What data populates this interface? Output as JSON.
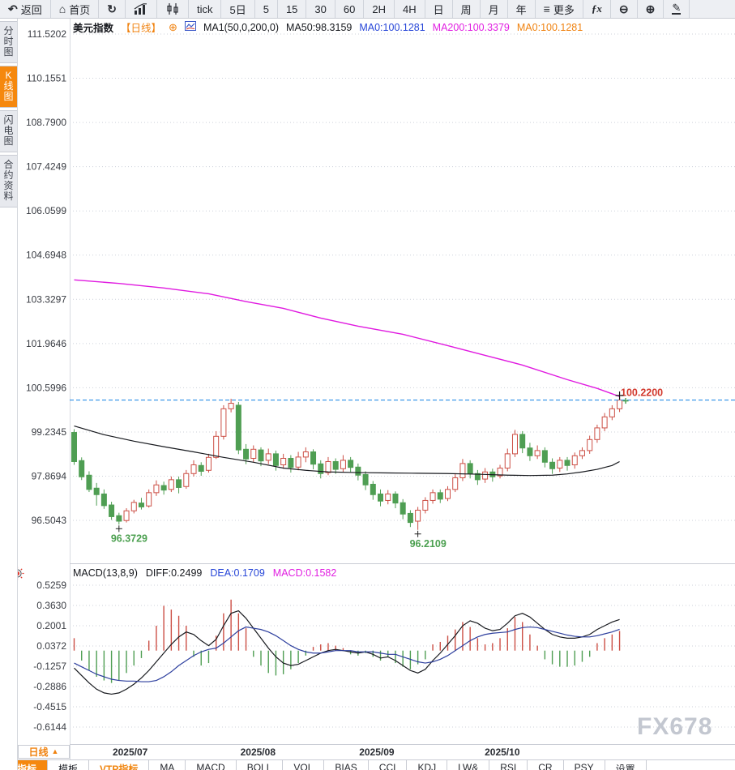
{
  "toolbar": {
    "items": [
      {
        "name": "back",
        "icon": "back",
        "label": "返回"
      },
      {
        "name": "home",
        "icon": "home",
        "label": "首页"
      },
      {
        "name": "refresh",
        "icon": "refresh",
        "label": ""
      },
      {
        "name": "chart-style-bar",
        "icon": "barchart",
        "label": ""
      },
      {
        "name": "chart-style-candle",
        "icon": "candles",
        "label": ""
      },
      {
        "name": "period-tick",
        "icon": "",
        "label": "tick"
      },
      {
        "name": "period-5day",
        "icon": "",
        "label": "5日"
      },
      {
        "name": "period-5min",
        "icon": "",
        "label": "5"
      },
      {
        "name": "period-15min",
        "icon": "",
        "label": "15"
      },
      {
        "name": "period-30min",
        "icon": "",
        "label": "30"
      },
      {
        "name": "period-60min",
        "icon": "",
        "label": "60"
      },
      {
        "name": "period-2hour",
        "icon": "",
        "label": "2H"
      },
      {
        "name": "period-4hour",
        "icon": "",
        "label": "4H"
      },
      {
        "name": "period-day",
        "icon": "",
        "label": "日"
      },
      {
        "name": "period-week",
        "icon": "",
        "label": "周"
      },
      {
        "name": "period-month",
        "icon": "",
        "label": "月"
      },
      {
        "name": "period-year",
        "icon": "",
        "label": "年"
      },
      {
        "name": "more-menu",
        "icon": "menu",
        "label": "更多"
      },
      {
        "name": "formula",
        "icon": "fx",
        "label": ""
      },
      {
        "name": "zoom-out",
        "icon": "zoomout",
        "label": ""
      },
      {
        "name": "zoom-in",
        "icon": "zoomin",
        "label": ""
      },
      {
        "name": "draw-tool",
        "icon": "pencil",
        "label": ""
      }
    ]
  },
  "sidebar": {
    "tabs": [
      {
        "name": "timeshare-chart",
        "label": "分时图",
        "active": false
      },
      {
        "name": "kline-chart",
        "label": "K线图",
        "active": true
      },
      {
        "name": "lightning-chart",
        "label": "闪电图",
        "active": false
      },
      {
        "name": "contract-info",
        "label": "合约资料",
        "active": false
      }
    ]
  },
  "chart_header": {
    "symbol": "美元指数",
    "period_tag": "【日线】",
    "add_icon": "⊕",
    "ma_settings": "MA1(50,0,200,0)",
    "ma50": "MA50:98.3159",
    "ma0_blue": "MA0:100.1281",
    "ma200": "MA200:100.3379",
    "ma0_orange": "MA0:100.1281"
  },
  "macd_header": {
    "title": "MACD(13,8,9)",
    "diff": "DIFF:0.2499",
    "dea": "DEA:0.1709",
    "macd": "MACD:0.1582"
  },
  "bottom": {
    "period_selector": "日线",
    "caret": "▲",
    "tabs": [
      {
        "name": "indicator",
        "label": "指标",
        "style": "active"
      },
      {
        "name": "template",
        "label": "模板",
        "style": "plain"
      },
      {
        "name": "vtp-indicator",
        "label": "VTP指标",
        "style": "orange"
      },
      {
        "name": "ma",
        "label": "MA",
        "style": "plain"
      },
      {
        "name": "macd",
        "label": "MACD",
        "style": "plain"
      },
      {
        "name": "boll",
        "label": "BOLL",
        "style": "plain"
      },
      {
        "name": "vol",
        "label": "VOL",
        "style": "plain"
      },
      {
        "name": "bias",
        "label": "BIAS",
        "style": "plain"
      },
      {
        "name": "cci",
        "label": "CCI",
        "style": "plain"
      },
      {
        "name": "kdj",
        "label": "KDJ",
        "style": "plain"
      },
      {
        "name": "lwr",
        "label": "LW&",
        "style": "plain"
      },
      {
        "name": "rsi",
        "label": "RSI",
        "style": "plain"
      },
      {
        "name": "cr",
        "label": "CR",
        "style": "plain"
      },
      {
        "name": "psy",
        "label": "PSY",
        "style": "plain"
      },
      {
        "name": "settings",
        "label": "设置",
        "style": "plain"
      }
    ]
  },
  "watermark": "FX678",
  "colors": {
    "accent_orange": "#f0820f",
    "up_red": "#cc4f45",
    "down_green": "#4f9e53",
    "ma50_black": "#17191e",
    "ma200_magenta": "#e01ae0",
    "dea_blue": "#2d3f9e",
    "diff_black": "#17191e",
    "price_line_blue": "#2b8fe8",
    "price_label_red": "#d2382c",
    "low_label_green": "#4ca050",
    "grid": "#ccd1da",
    "axis_text": "#383b42",
    "border": "#c9ccd4",
    "month_text": "#2a2d33"
  },
  "chart_data": {
    "type": "candlestick",
    "title": "美元指数 日线 (US Dollar Index, daily) with MA50/MA200 and MACD(13,8,9)",
    "main": {
      "y_ticks": [
        "111.5202",
        "110.1551",
        "108.7900",
        "107.4249",
        "106.0599",
        "104.6948",
        "103.3297",
        "101.9646",
        "100.5996",
        "99.2345",
        "97.8694",
        "96.5043"
      ],
      "candles": [
        [
          99.22,
          99.32,
          98.22,
          98.32
        ],
        [
          98.35,
          98.45,
          97.75,
          97.85
        ],
        [
          97.9,
          98.02,
          97.38,
          97.46
        ],
        [
          97.5,
          97.66,
          96.96,
          97.3
        ],
        [
          97.32,
          97.46,
          96.86,
          96.96
        ],
        [
          96.98,
          97.08,
          96.52,
          96.62
        ],
        [
          96.65,
          96.74,
          96.3729,
          96.48
        ],
        [
          96.5,
          96.88,
          96.44,
          96.8
        ],
        [
          96.8,
          97.14,
          96.72,
          97.06
        ],
        [
          97.04,
          97.2,
          96.84,
          96.92
        ],
        [
          96.95,
          97.46,
          96.9,
          97.36
        ],
        [
          97.36,
          97.74,
          97.26,
          97.6
        ],
        [
          97.58,
          97.7,
          97.3,
          97.44
        ],
        [
          97.46,
          97.86,
          97.38,
          97.76
        ],
        [
          97.76,
          97.86,
          97.34,
          97.52
        ],
        [
          97.55,
          98.06,
          97.48,
          97.95
        ],
        [
          97.95,
          98.36,
          97.86,
          98.22
        ],
        [
          98.2,
          98.3,
          97.88,
          98.02
        ],
        [
          98.05,
          98.56,
          97.98,
          98.45
        ],
        [
          98.45,
          99.26,
          98.4,
          99.1
        ],
        [
          99.1,
          100.06,
          99.0,
          99.95
        ],
        [
          99.95,
          100.26,
          99.84,
          100.12
        ],
        [
          100.06,
          100.16,
          98.55,
          98.68
        ],
        [
          98.7,
          98.86,
          98.24,
          98.4
        ],
        [
          98.42,
          98.82,
          98.3,
          98.7
        ],
        [
          98.68,
          98.76,
          98.18,
          98.34
        ],
        [
          98.36,
          98.72,
          98.24,
          98.56
        ],
        [
          98.56,
          98.66,
          98.04,
          98.2
        ],
        [
          98.22,
          98.56,
          98.1,
          98.42
        ],
        [
          98.42,
          98.52,
          97.98,
          98.14
        ],
        [
          98.15,
          98.62,
          98.05,
          98.46
        ],
        [
          98.46,
          98.76,
          98.3,
          98.62
        ],
        [
          98.62,
          98.7,
          98.08,
          98.24
        ],
        [
          98.25,
          98.36,
          97.8,
          97.95
        ],
        [
          97.98,
          98.46,
          97.9,
          98.32
        ],
        [
          98.32,
          98.42,
          97.94,
          98.08
        ],
        [
          98.1,
          98.52,
          98.0,
          98.36
        ],
        [
          98.36,
          98.46,
          98.0,
          98.14
        ],
        [
          98.15,
          98.26,
          97.74,
          97.9
        ],
        [
          97.92,
          98.02,
          97.44,
          97.6
        ],
        [
          97.62,
          97.72,
          97.14,
          97.3
        ],
        [
          97.32,
          97.46,
          96.94,
          97.1
        ],
        [
          97.12,
          97.44,
          97.0,
          97.32
        ],
        [
          97.32,
          97.4,
          96.88,
          97.04
        ],
        [
          97.05,
          97.16,
          96.54,
          96.7
        ],
        [
          96.72,
          96.82,
          96.3,
          96.44
        ],
        [
          96.48,
          96.92,
          96.2109,
          96.82
        ],
        [
          96.82,
          97.22,
          96.72,
          97.12
        ],
        [
          97.12,
          97.46,
          97.02,
          97.36
        ],
        [
          97.36,
          97.46,
          97.04,
          97.16
        ],
        [
          97.18,
          97.56,
          97.1,
          97.46
        ],
        [
          97.46,
          97.96,
          97.38,
          97.82
        ],
        [
          97.82,
          98.4,
          97.72,
          98.26
        ],
        [
          98.26,
          98.36,
          97.8,
          97.95
        ],
        [
          97.95,
          98.06,
          97.6,
          97.76
        ],
        [
          97.78,
          98.12,
          97.66,
          98.0
        ],
        [
          98.0,
          98.1,
          97.7,
          97.85
        ],
        [
          97.88,
          98.22,
          97.8,
          98.12
        ],
        [
          98.12,
          98.72,
          98.02,
          98.56
        ],
        [
          98.56,
          99.3,
          98.46,
          99.16
        ],
        [
          99.16,
          99.26,
          98.58,
          98.74
        ],
        [
          98.74,
          98.9,
          98.34,
          98.5
        ],
        [
          98.5,
          98.82,
          98.4,
          98.66
        ],
        [
          98.66,
          98.76,
          98.14,
          98.3
        ],
        [
          98.3,
          98.42,
          97.94,
          98.1
        ],
        [
          98.12,
          98.46,
          98.0,
          98.36
        ],
        [
          98.36,
          98.46,
          98.04,
          98.2
        ],
        [
          98.22,
          98.6,
          98.1,
          98.5
        ],
        [
          98.5,
          98.76,
          98.4,
          98.66
        ],
        [
          98.66,
          99.12,
          98.56,
          99.0
        ],
        [
          99.0,
          99.46,
          98.9,
          99.36
        ],
        [
          99.36,
          99.82,
          99.26,
          99.7
        ],
        [
          99.7,
          100.06,
          99.6,
          99.95
        ],
        [
          99.95,
          100.31,
          99.85,
          100.22
        ]
      ],
      "ma50": [
        [
          0,
          99.42
        ],
        [
          4,
          99.15
        ],
        [
          8,
          98.95
        ],
        [
          12,
          98.78
        ],
        [
          16,
          98.62
        ],
        [
          20,
          98.45
        ],
        [
          24,
          98.3
        ],
        [
          28,
          98.12
        ],
        [
          31,
          98.05
        ],
        [
          34,
          98.0
        ],
        [
          38,
          97.98
        ],
        [
          42,
          97.97
        ],
        [
          46,
          97.96
        ],
        [
          50,
          97.95
        ],
        [
          54,
          97.93
        ],
        [
          58,
          97.9
        ],
        [
          61,
          97.89
        ],
        [
          64,
          97.9
        ],
        [
          66,
          97.94
        ],
        [
          68,
          98.0
        ],
        [
          70,
          98.08
        ],
        [
          72,
          98.2
        ],
        [
          73,
          98.32
        ]
      ],
      "ma200": [
        [
          0,
          103.93
        ],
        [
          6,
          103.82
        ],
        [
          12,
          103.68
        ],
        [
          18,
          103.5
        ],
        [
          23,
          103.26
        ],
        [
          28,
          103.05
        ],
        [
          33,
          102.75
        ],
        [
          38,
          102.5
        ],
        [
          44,
          102.25
        ],
        [
          50,
          101.9
        ],
        [
          55,
          101.6
        ],
        [
          60,
          101.3
        ],
        [
          66,
          100.85
        ],
        [
          70,
          100.58
        ],
        [
          73,
          100.33
        ]
      ],
      "last_price": {
        "value": 100.22,
        "label": "100.2200"
      },
      "lows": [
        {
          "index": 6,
          "value": 96.3729,
          "label": "96.3729"
        },
        {
          "index": 46,
          "value": 96.2109,
          "label": "96.2109"
        }
      ]
    },
    "macd": {
      "y_ticks": [
        "0.5259",
        "0.3630",
        "0.2001",
        "0.0372",
        "-0.1257",
        "-0.2886",
        "-0.4515",
        "-0.6144"
      ],
      "hist": [
        0.1,
        -0.08,
        -0.16,
        -0.21,
        -0.24,
        -0.26,
        -0.24,
        -0.18,
        -0.12,
        -0.06,
        0.08,
        0.2,
        0.36,
        0.33,
        0.28,
        0.2,
        -0.05,
        -0.12,
        -0.1,
        0.12,
        0.3,
        0.41,
        0.3,
        0.18,
        -0.05,
        -0.12,
        -0.18,
        -0.2,
        -0.19,
        -0.15,
        -0.1,
        -0.04,
        0.03,
        0.05,
        0.06,
        0.04,
        0.02,
        -0.03,
        -0.04,
        -0.02,
        -0.05,
        -0.08,
        -0.05,
        -0.1,
        -0.13,
        -0.15,
        -0.11,
        -0.07,
        0.05,
        0.07,
        0.12,
        0.17,
        0.23,
        0.19,
        0.1,
        0.05,
        0.06,
        0.1,
        0.18,
        0.27,
        0.23,
        0.13,
        0.04,
        -0.07,
        -0.11,
        -0.13,
        -0.13,
        -0.12,
        -0.09,
        -0.05,
        0.06,
        0.1,
        0.13,
        0.158
      ],
      "diff": [
        -0.14,
        -0.2,
        -0.26,
        -0.31,
        -0.34,
        -0.35,
        -0.34,
        -0.31,
        -0.27,
        -0.22,
        -0.16,
        -0.09,
        -0.02,
        0.05,
        0.11,
        0.15,
        0.13,
        0.08,
        0.04,
        0.09,
        0.2,
        0.3,
        0.32,
        0.26,
        0.18,
        0.1,
        0.02,
        -0.05,
        -0.1,
        -0.12,
        -0.11,
        -0.08,
        -0.05,
        -0.02,
        0.0,
        0.01,
        0.0,
        -0.01,
        -0.02,
        -0.01,
        -0.03,
        -0.06,
        -0.05,
        -0.08,
        -0.12,
        -0.16,
        -0.18,
        -0.15,
        -0.08,
        -0.02,
        0.05,
        0.12,
        0.2,
        0.24,
        0.22,
        0.18,
        0.16,
        0.17,
        0.22,
        0.28,
        0.3,
        0.27,
        0.22,
        0.17,
        0.13,
        0.11,
        0.1,
        0.1,
        0.11,
        0.13,
        0.17,
        0.2,
        0.23,
        0.2499
      ],
      "dea": [
        -0.1,
        -0.13,
        -0.16,
        -0.19,
        -0.21,
        -0.23,
        -0.24,
        -0.245,
        -0.245,
        -0.25,
        -0.25,
        -0.24,
        -0.21,
        -0.17,
        -0.12,
        -0.08,
        -0.04,
        -0.01,
        0.01,
        0.02,
        0.06,
        0.11,
        0.16,
        0.19,
        0.18,
        0.17,
        0.15,
        0.12,
        0.08,
        0.04,
        0.01,
        -0.01,
        -0.02,
        -0.02,
        -0.01,
        0.0,
        0.0,
        0.0,
        -0.01,
        -0.01,
        -0.01,
        -0.02,
        -0.03,
        -0.03,
        -0.05,
        -0.07,
        -0.09,
        -0.1,
        -0.09,
        -0.07,
        -0.04,
        0.0,
        0.04,
        0.08,
        0.11,
        0.13,
        0.14,
        0.145,
        0.15,
        0.17,
        0.185,
        0.19,
        0.185,
        0.17,
        0.155,
        0.14,
        0.125,
        0.115,
        0.11,
        0.11,
        0.12,
        0.135,
        0.15,
        0.1709
      ]
    },
    "x_axis": {
      "months": [
        {
          "label": "2025/07",
          "index": 7.5
        },
        {
          "label": "2025/08",
          "index": 24.6
        },
        {
          "label": "2025/09",
          "index": 40.5
        },
        {
          "label": "2025/10",
          "index": 57.3
        }
      ]
    }
  }
}
